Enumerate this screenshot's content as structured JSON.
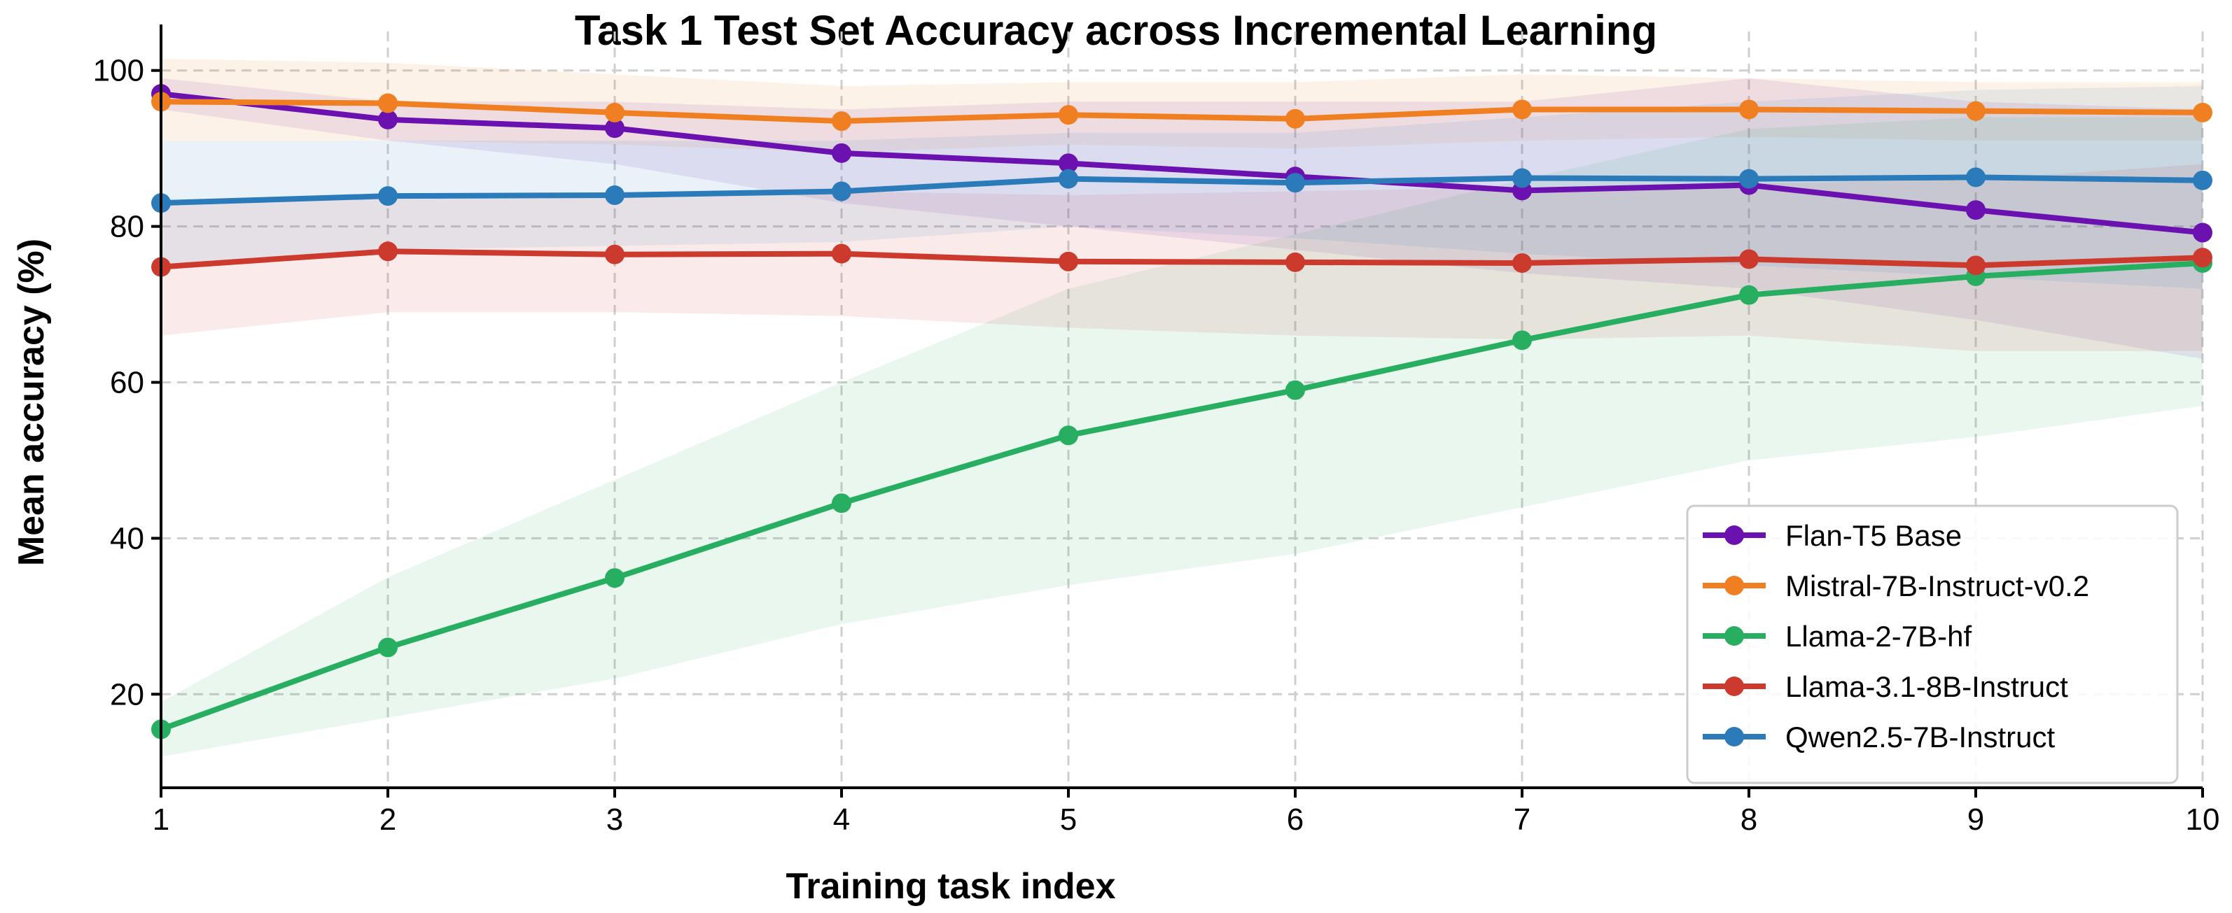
{
  "chart_data": {
    "type": "line",
    "title": "Task 1 Test Set Accuracy across Incremental Learning",
    "xlabel": "Training task index",
    "ylabel": "Mean accuracy (%)",
    "x": [
      1,
      2,
      3,
      4,
      5,
      6,
      7,
      8,
      9,
      10
    ],
    "xlim": [
      1,
      10
    ],
    "ylim": [
      8,
      105
    ],
    "xticks": [
      1,
      2,
      3,
      4,
      5,
      6,
      7,
      8,
      9,
      10
    ],
    "yticks": [
      20,
      40,
      60,
      80,
      100
    ],
    "grid": true,
    "legend_position": "lower-right",
    "series": [
      {
        "name": "Flan-T5 Base",
        "color": "#6a11b0",
        "values": [
          97.0,
          93.7,
          92.6,
          89.4,
          88.1,
          86.4,
          84.6,
          85.3,
          82.1,
          79.2
        ],
        "lower": [
          95.0,
          91.0,
          88.0,
          83.0,
          80.0,
          77.0,
          74.0,
          72.0,
          68.0,
          63.0
        ],
        "upper": [
          99.0,
          96.0,
          96.0,
          95.0,
          96.0,
          96.0,
          96.0,
          99.0,
          96.0,
          95.0
        ]
      },
      {
        "name": "Mistral-7B-Instruct-v0.2",
        "color": "#f07f22",
        "values": [
          96.0,
          95.8,
          94.6,
          93.5,
          94.3,
          93.8,
          95.0,
          95.0,
          94.8,
          94.6
        ],
        "lower": [
          91.0,
          91.0,
          90.5,
          89.5,
          90.5,
          90.0,
          91.0,
          91.5,
          91.0,
          91.0
        ],
        "upper": [
          101.5,
          101.0,
          99.5,
          98.0,
          98.5,
          98.5,
          99.5,
          99.0,
          98.5,
          98.5
        ]
      },
      {
        "name": "Llama-2-7B-hf",
        "color": "#27ae60",
        "values": [
          15.5,
          26.0,
          34.9,
          44.5,
          53.2,
          59.0,
          65.4,
          71.2,
          73.6,
          75.3
        ],
        "lower": [
          12.0,
          17.0,
          22.0,
          29.0,
          34.0,
          38.0,
          44.0,
          50.0,
          53.0,
          57.0
        ],
        "upper": [
          19.0,
          35.0,
          47.5,
          60.0,
          72.0,
          79.0,
          86.0,
          92.5,
          94.0,
          94.0
        ]
      },
      {
        "name": "Llama-3.1-8B-Instruct",
        "color": "#cc3a2d",
        "values": [
          74.8,
          76.8,
          76.4,
          76.5,
          75.5,
          75.4,
          75.3,
          75.8,
          75.0,
          76.0
        ],
        "lower": [
          66.0,
          69.0,
          69.0,
          68.5,
          67.0,
          66.0,
          65.5,
          66.0,
          64.0,
          64.0
        ],
        "upper": [
          83.0,
          84.0,
          84.0,
          84.5,
          84.0,
          84.5,
          85.0,
          85.5,
          86.0,
          88.0
        ]
      },
      {
        "name": "Qwen2.5-7B-Instruct",
        "color": "#2b7bba",
        "values": [
          83.0,
          83.9,
          84.0,
          84.5,
          86.1,
          85.6,
          86.2,
          86.1,
          86.3,
          85.9
        ],
        "lower": [
          75.0,
          77.0,
          77.5,
          78.0,
          80.0,
          78.5,
          76.5,
          75.0,
          73.5,
          72.0
        ],
        "upper": [
          91.0,
          91.0,
          91.0,
          91.0,
          92.0,
          92.0,
          94.0,
          96.0,
          97.5,
          98.0
        ]
      }
    ]
  }
}
